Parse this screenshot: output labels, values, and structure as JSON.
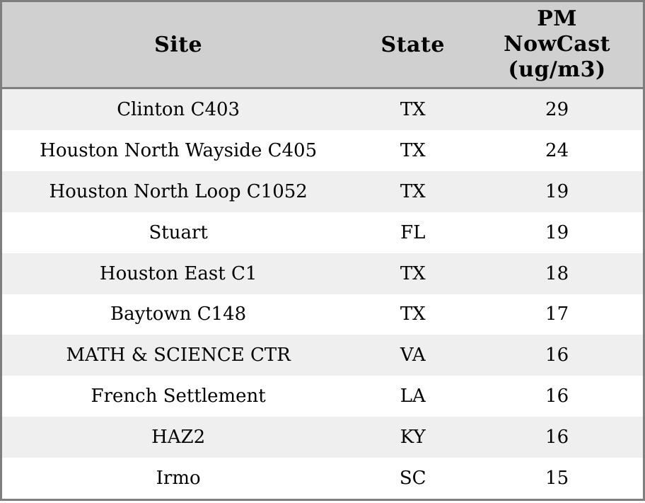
{
  "table": {
    "header": {
      "site": "Site",
      "state": "State",
      "pm_lines": [
        "PM",
        "NowCast",
        "(ug/m3)"
      ]
    },
    "rows": [
      {
        "site": "Clinton C403",
        "state": "TX",
        "pm": "29"
      },
      {
        "site": "Houston North Wayside C405",
        "state": "TX",
        "pm": "24"
      },
      {
        "site": "Houston North Loop C1052",
        "state": "TX",
        "pm": "19"
      },
      {
        "site": "Stuart",
        "state": "FL",
        "pm": "19"
      },
      {
        "site": "Houston East C1",
        "state": "TX",
        "pm": "18"
      },
      {
        "site": "Baytown C148",
        "state": "TX",
        "pm": "17"
      },
      {
        "site": "MATH & SCIENCE CTR",
        "state": "VA",
        "pm": "16"
      },
      {
        "site": "French Settlement",
        "state": "LA",
        "pm": "16"
      },
      {
        "site": "HAZ2",
        "state": "KY",
        "pm": "16"
      },
      {
        "site": "Irmo",
        "state": "SC",
        "pm": "15"
      }
    ],
    "colors": {
      "header_bg": "#d0d0d0",
      "row_stripe_bg": "#efefef",
      "row_bg": "#ffffff",
      "border": "#7e7e7e",
      "text": "#000000"
    }
  },
  "chart_data": {
    "type": "table",
    "title": "",
    "columns": [
      "Site",
      "State",
      "PM NowCast (ug/m3)"
    ],
    "rows": [
      [
        "Clinton C403",
        "TX",
        29
      ],
      [
        "Houston North Wayside C405",
        "TX",
        24
      ],
      [
        "Houston North Loop C1052",
        "TX",
        19
      ],
      [
        "Stuart",
        "FL",
        19
      ],
      [
        "Houston East C1",
        "TX",
        18
      ],
      [
        "Baytown C148",
        "TX",
        17
      ],
      [
        "MATH & SCIENCE CTR",
        "VA",
        16
      ],
      [
        "French Settlement",
        "LA",
        16
      ],
      [
        "HAZ2",
        "KY",
        16
      ],
      [
        "Irmo",
        "SC",
        15
      ]
    ],
    "layout_hints": {
      "striped_rows": true,
      "column_alignment": [
        "center",
        "center",
        "center"
      ],
      "header_background": "#d0d0d0"
    }
  }
}
